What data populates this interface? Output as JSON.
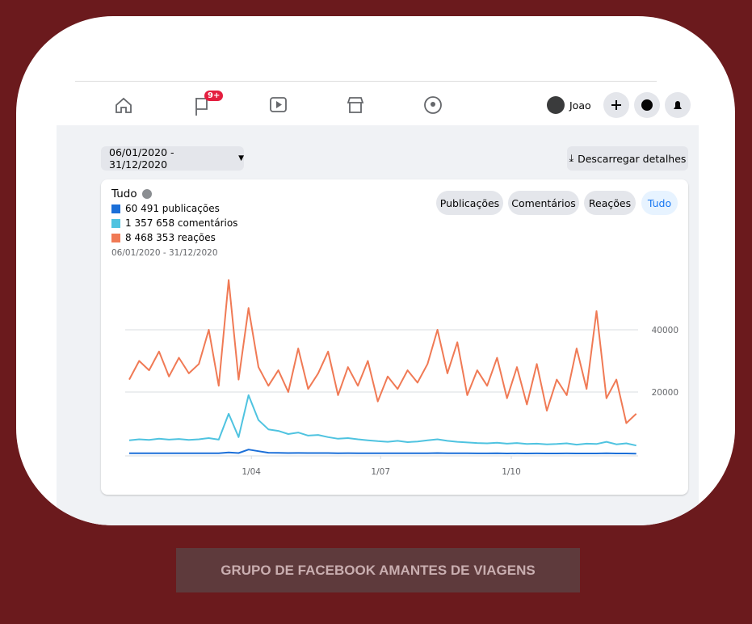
{
  "nav": {
    "badge": "9+",
    "user": "Joao"
  },
  "toolbar": {
    "date_range": "06/01/2020 - 31/12/2020",
    "download": "Descarregar detalhes"
  },
  "tabs": [
    "Publicações",
    "Comentários",
    "Reações",
    "Tudo"
  ],
  "caption": "GRUPO DE FACEBOOK AMANTES DE VIAGENS",
  "chart_data": {
    "type": "line",
    "title": "Tudo",
    "subtitle": "06/01/2020 - 31/12/2020",
    "legend": "top-left",
    "grid": true,
    "x": [
      "2020-01-06",
      "2020-01-13",
      "2020-01-20",
      "2020-01-27",
      "2020-02-03",
      "2020-02-10",
      "2020-02-17",
      "2020-02-24",
      "2020-03-02",
      "2020-03-09",
      "2020-03-16",
      "2020-03-23",
      "2020-03-30",
      "2020-04-06",
      "2020-04-13",
      "2020-04-20",
      "2020-04-27",
      "2020-05-04",
      "2020-05-11",
      "2020-05-18",
      "2020-05-25",
      "2020-06-01",
      "2020-06-08",
      "2020-06-15",
      "2020-06-22",
      "2020-06-29",
      "2020-07-06",
      "2020-07-13",
      "2020-07-20",
      "2020-07-27",
      "2020-08-03",
      "2020-08-10",
      "2020-08-17",
      "2020-08-24",
      "2020-08-31",
      "2020-09-07",
      "2020-09-14",
      "2020-09-21",
      "2020-09-28",
      "2020-10-05",
      "2020-10-12",
      "2020-10-19",
      "2020-10-26",
      "2020-11-02",
      "2020-11-09",
      "2020-11-16",
      "2020-11-23",
      "2020-11-30",
      "2020-12-07",
      "2020-12-14",
      "2020-12-21",
      "2020-12-28"
    ],
    "xlim": [
      "2020-01-06",
      "2020-12-31"
    ],
    "xticks": [
      {
        "value": "2020-04-01",
        "label": "1/04"
      },
      {
        "value": "2020-07-01",
        "label": "1/07"
      },
      {
        "value": "2020-10-01",
        "label": "1/10"
      }
    ],
    "ylim": [
      0,
      60000
    ],
    "yticks": [
      20000,
      40000
    ],
    "series": [
      {
        "name": "60 491 publicações",
        "color": "#1b6fd8",
        "values": [
          300,
          320,
          310,
          330,
          300,
          320,
          310,
          330,
          350,
          320,
          600,
          400,
          1500,
          1000,
          500,
          450,
          400,
          420,
          380,
          400,
          380,
          350,
          370,
          340,
          350,
          330,
          320,
          340,
          310,
          330,
          350,
          380,
          340,
          320,
          300,
          290,
          280,
          300,
          270,
          290,
          260,
          280,
          250,
          260,
          280,
          250,
          270,
          260,
          300,
          250,
          270,
          220
        ]
      },
      {
        "name": "1 357 658 comentários",
        "color": "#4fc3e0",
        "values": [
          4500,
          4800,
          4600,
          5000,
          4700,
          4900,
          4600,
          4800,
          5200,
          4700,
          13000,
          5500,
          19000,
          11000,
          8000,
          7500,
          6500,
          7000,
          6000,
          6200,
          5500,
          5000,
          5200,
          4800,
          4500,
          4200,
          4000,
          4300,
          3900,
          4100,
          4500,
          4800,
          4300,
          4000,
          3800,
          3600,
          3500,
          3700,
          3400,
          3600,
          3300,
          3400,
          3200,
          3300,
          3500,
          3100,
          3400,
          3300,
          4000,
          3200,
          3500,
          2800
        ]
      },
      {
        "name": "8 468 353 reações",
        "color": "#f07a55",
        "values": [
          24000,
          30000,
          27000,
          33000,
          25000,
          31000,
          26000,
          29000,
          40000,
          22000,
          56000,
          24000,
          47000,
          28000,
          22000,
          27000,
          20000,
          34000,
          21000,
          26000,
          33000,
          19000,
          28000,
          22000,
          30000,
          17000,
          25000,
          21000,
          27000,
          23000,
          29000,
          40000,
          26000,
          36000,
          19000,
          27000,
          22000,
          31000,
          18000,
          28000,
          16000,
          29000,
          14000,
          24000,
          19000,
          34000,
          21000,
          46000,
          18000,
          24000,
          10000,
          13000
        ]
      }
    ]
  }
}
